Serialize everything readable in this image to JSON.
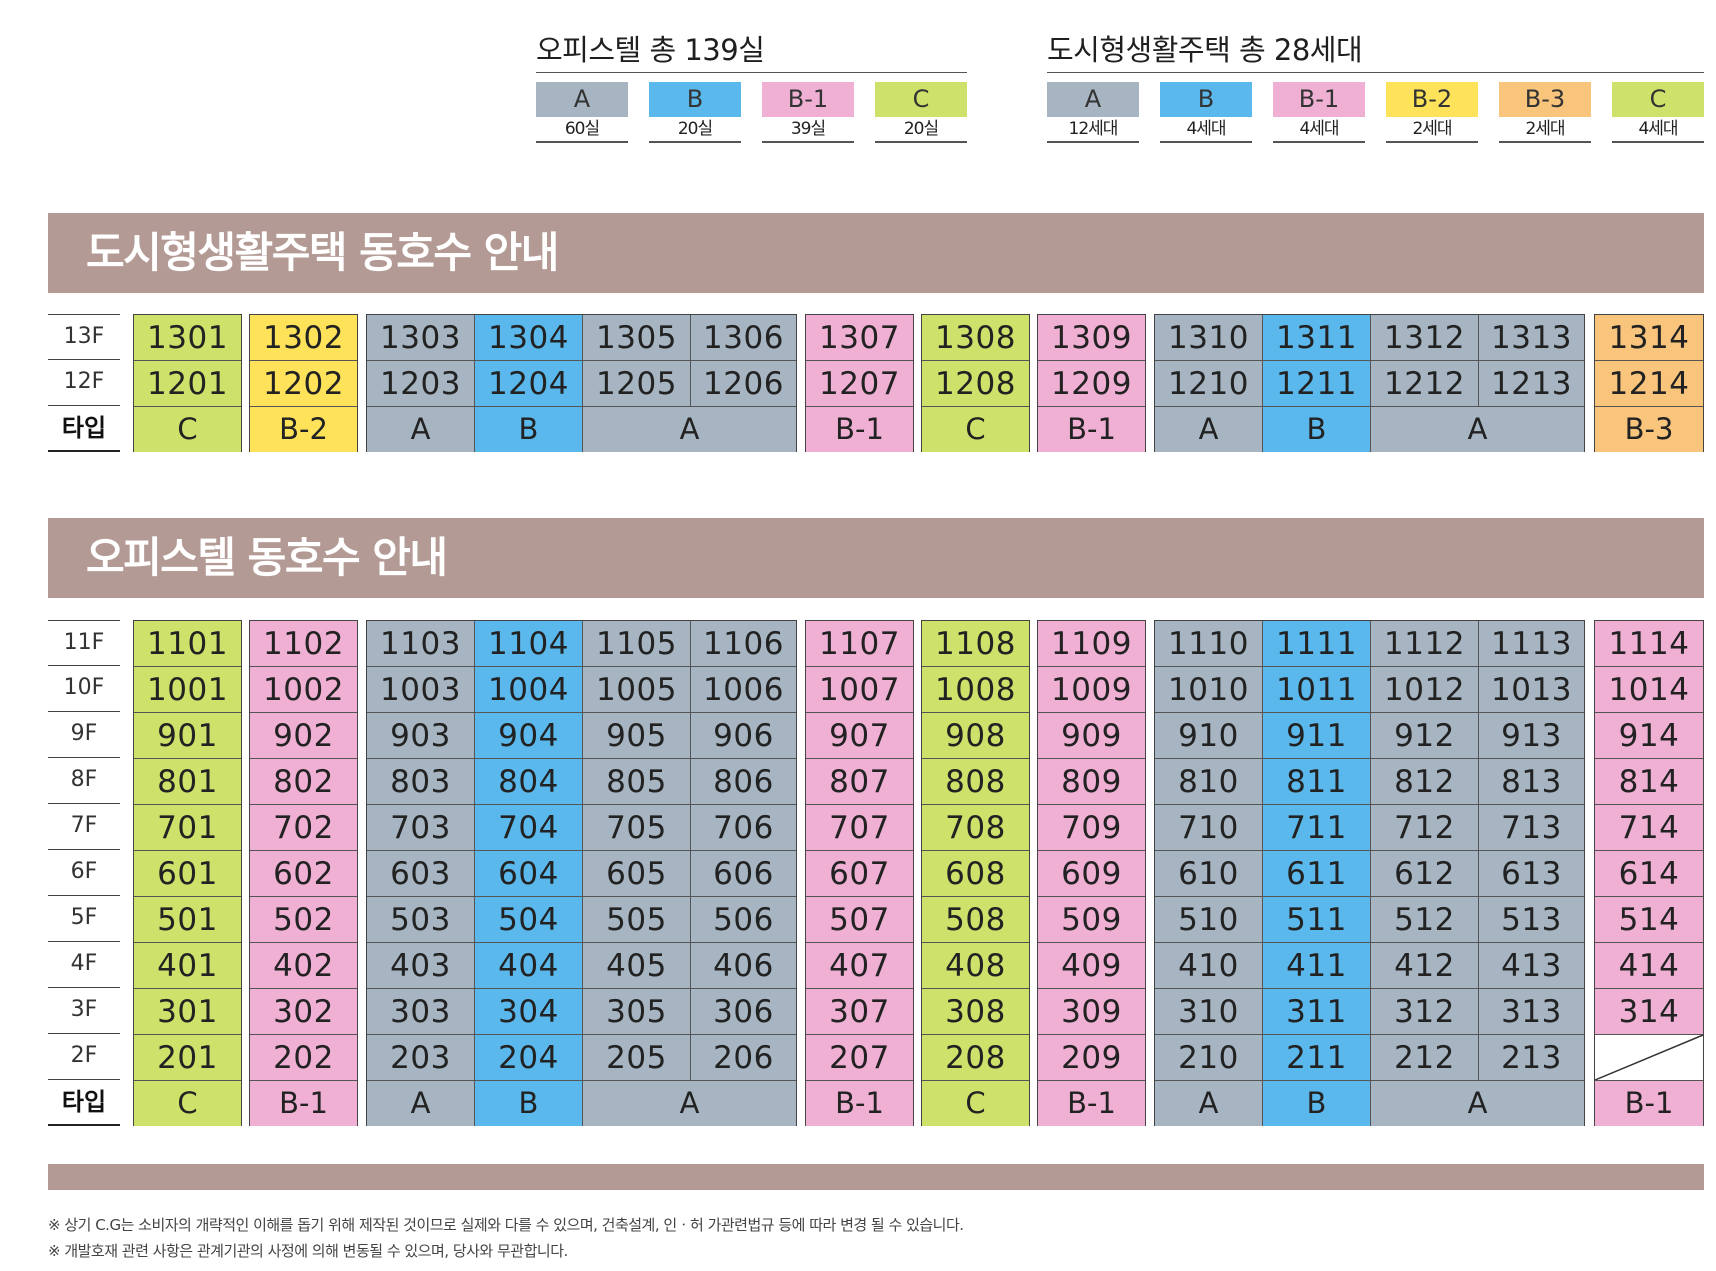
{
  "colors": {
    "A": "#a6b5c1",
    "B": "#5bb8ec",
    "B-1": "#efb0d4",
    "B-2": "#fde25a",
    "B-3": "#f9c47c",
    "C": "#cee16b",
    "band": "#b39a95"
  },
  "legend_officetel": {
    "title": "오피스텔 총 139실",
    "items": [
      {
        "type": "A",
        "count": "60실"
      },
      {
        "type": "B",
        "count": "20실"
      },
      {
        "type": "B-1",
        "count": "39실"
      },
      {
        "type": "C",
        "count": "20실"
      }
    ]
  },
  "legend_urban": {
    "title": "도시형생활주택 총 28세대",
    "items": [
      {
        "type": "A",
        "count": "12세대"
      },
      {
        "type": "B",
        "count": "4세대"
      },
      {
        "type": "B-1",
        "count": "4세대"
      },
      {
        "type": "B-2",
        "count": "2세대"
      },
      {
        "type": "B-3",
        "count": "2세대"
      },
      {
        "type": "C",
        "count": "4세대"
      }
    ]
  },
  "urban_section": {
    "title": "도시형생활주택 동호수 안내",
    "floors": [
      "13F",
      "12F"
    ],
    "type_label": "타입",
    "units": [
      [
        "1301",
        "1302",
        "1303",
        "1304",
        "1305",
        "1306",
        "1307",
        "1308",
        "1309",
        "1310",
        "1311",
        "1312",
        "1313",
        "1314"
      ],
      [
        "1201",
        "1202",
        "1203",
        "1204",
        "1205",
        "1206",
        "1207",
        "1208",
        "1209",
        "1210",
        "1211",
        "1212",
        "1213",
        "1214"
      ]
    ],
    "column_types": [
      "C",
      "B-2",
      "A",
      "B",
      "A",
      "A",
      "B-1",
      "C",
      "B-1",
      "A",
      "B",
      "A",
      "A",
      "B-3"
    ]
  },
  "officetel_section": {
    "title": "오피스텔 동호수 안내",
    "floors": [
      "11F",
      "10F",
      "9F",
      "8F",
      "7F",
      "6F",
      "5F",
      "4F",
      "3F",
      "2F"
    ],
    "type_label": "타입",
    "units": [
      [
        "1101",
        "1102",
        "1103",
        "1104",
        "1105",
        "1106",
        "1107",
        "1108",
        "1109",
        "1110",
        "1111",
        "1112",
        "1113",
        "1114"
      ],
      [
        "1001",
        "1002",
        "1003",
        "1004",
        "1005",
        "1006",
        "1007",
        "1008",
        "1009",
        "1010",
        "1011",
        "1012",
        "1013",
        "1014"
      ],
      [
        "901",
        "902",
        "903",
        "904",
        "905",
        "906",
        "907",
        "908",
        "909",
        "910",
        "911",
        "912",
        "913",
        "914"
      ],
      [
        "801",
        "802",
        "803",
        "804",
        "805",
        "806",
        "807",
        "808",
        "809",
        "810",
        "811",
        "812",
        "813",
        "814"
      ],
      [
        "701",
        "702",
        "703",
        "704",
        "705",
        "706",
        "707",
        "708",
        "709",
        "710",
        "711",
        "712",
        "713",
        "714"
      ],
      [
        "601",
        "602",
        "603",
        "604",
        "605",
        "606",
        "607",
        "608",
        "609",
        "610",
        "611",
        "612",
        "613",
        "614"
      ],
      [
        "501",
        "502",
        "503",
        "504",
        "505",
        "506",
        "507",
        "508",
        "509",
        "510",
        "511",
        "512",
        "513",
        "514"
      ],
      [
        "401",
        "402",
        "403",
        "404",
        "405",
        "406",
        "407",
        "408",
        "409",
        "410",
        "411",
        "412",
        "413",
        "414"
      ],
      [
        "301",
        "302",
        "303",
        "304",
        "305",
        "306",
        "307",
        "308",
        "309",
        "310",
        "311",
        "312",
        "313",
        "314"
      ],
      [
        "201",
        "202",
        "203",
        "204",
        "205",
        "206",
        "207",
        "208",
        "209",
        "210",
        "211",
        "212",
        "213",
        ""
      ]
    ],
    "column_types": [
      "C",
      "B-1",
      "A",
      "B",
      "A",
      "A",
      "B-1",
      "C",
      "B-1",
      "A",
      "B",
      "A",
      "A",
      "B-1"
    ]
  },
  "footnotes": [
    "※ 상기 C.G는 소비자의 개략적인 이해를 돕기 위해 제작된 것이므로 실제와 다를 수 있으며, 건축설계, 인ㆍ허 가관련법규 등에 따라 변경 될 수 있습니다.",
    "※ 개발호재 관련 사항은 관계기관의 사정에 의해 변동될 수 있으며, 당사와 무관합니다."
  ]
}
